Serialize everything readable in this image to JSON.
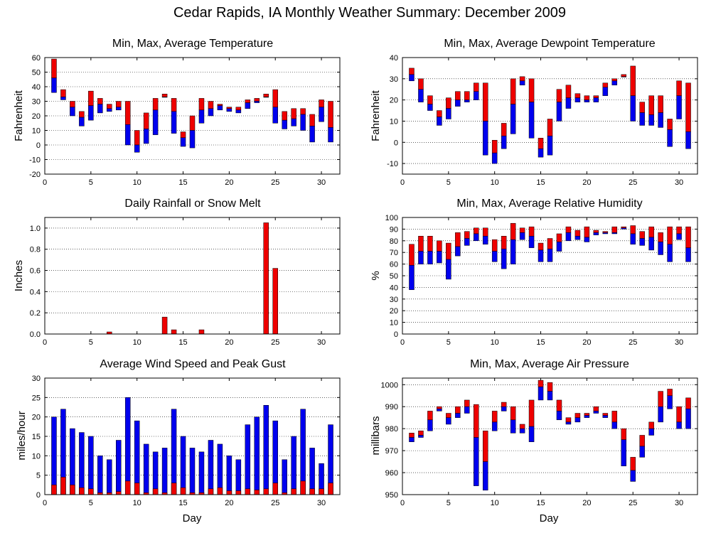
{
  "title": "Cedar Rapids, IA Monthly Weather Summary: December 2009",
  "colors": {
    "upper": "#ee0000",
    "lower": "#0000ee"
  },
  "chart_data": [
    {
      "id": "temp",
      "type": "bar",
      "title": "Min, Max, Average Temperature",
      "ylabel": "Fahrenheit",
      "xlabel": "",
      "xlim": [
        0,
        32
      ],
      "ylim": [
        -20,
        60
      ],
      "yticks": [
        -20,
        -10,
        0,
        10,
        20,
        30,
        40,
        50,
        60
      ],
      "xticks": [
        0,
        5,
        10,
        15,
        20,
        25,
        30
      ],
      "x": [
        1,
        2,
        3,
        4,
        5,
        6,
        7,
        8,
        9,
        10,
        11,
        12,
        13,
        14,
        15,
        16,
        17,
        18,
        19,
        20,
        21,
        22,
        23,
        24,
        25,
        26,
        27,
        28,
        29,
        30,
        31
      ],
      "series": [
        {
          "name": "Min",
          "values": [
            36,
            31,
            20,
            13,
            17,
            22,
            23,
            24,
            0,
            -5,
            1,
            7,
            33,
            8,
            -1,
            -2,
            15,
            20,
            24,
            23,
            22,
            25,
            29,
            33,
            15,
            11,
            13,
            10,
            2,
            16,
            2
          ]
        },
        {
          "name": "Average",
          "values": [
            46,
            33,
            26,
            19,
            27,
            28,
            25,
            26,
            14,
            0,
            11,
            24,
            33,
            23,
            5,
            10,
            24,
            25,
            27,
            25,
            24,
            29,
            30,
            33,
            26,
            17,
            18,
            21,
            13,
            26,
            12
          ]
        },
        {
          "name": "Max",
          "values": [
            59,
            38,
            30,
            23,
            37,
            32,
            28,
            30,
            30,
            10,
            22,
            32,
            35,
            32,
            9,
            20,
            32,
            30,
            28,
            26,
            26,
            31,
            32,
            35,
            38,
            23,
            25,
            25,
            21,
            31,
            30
          ]
        }
      ]
    },
    {
      "id": "dewpoint",
      "type": "bar",
      "title": "Min, Max, Average Dewpoint Temperature",
      "ylabel": "Fahrenheit",
      "xlabel": "",
      "xlim": [
        0,
        32
      ],
      "ylim": [
        -15,
        40
      ],
      "yticks": [
        -10,
        0,
        10,
        20,
        30,
        40
      ],
      "xticks": [
        0,
        5,
        10,
        15,
        20,
        25,
        30
      ],
      "x": [
        1,
        2,
        3,
        4,
        5,
        6,
        7,
        8,
        9,
        10,
        11,
        12,
        13,
        14,
        15,
        16,
        17,
        18,
        19,
        20,
        21,
        22,
        23,
        24,
        25,
        26,
        27,
        28,
        29,
        30,
        31
      ],
      "series": [
        {
          "name": "Min",
          "values": [
            29,
            19,
            15,
            8,
            11,
            17,
            19,
            20,
            -6,
            -10,
            -3,
            4,
            27,
            2,
            -7,
            -6,
            10,
            16,
            19,
            19,
            19,
            22,
            27,
            31,
            10,
            8,
            8,
            7,
            -2,
            11,
            -3
          ]
        },
        {
          "name": "Average",
          "values": [
            32,
            25,
            18,
            12,
            16,
            20,
            20,
            24,
            10,
            -5,
            3,
            18,
            29,
            19,
            -3,
            3,
            19,
            21,
            21,
            20,
            21,
            26,
            29,
            31,
            22,
            14,
            13,
            14,
            6,
            22,
            5
          ]
        },
        {
          "name": "Max",
          "values": [
            35,
            30,
            22,
            15,
            21,
            24,
            24,
            28,
            28,
            1,
            9,
            30,
            31,
            30,
            2,
            11,
            25,
            27,
            23,
            22,
            22,
            28,
            30,
            32,
            36,
            19,
            22,
            22,
            11,
            29,
            28
          ]
        }
      ]
    },
    {
      "id": "rain",
      "type": "bar",
      "title": "Daily Rainfall or Snow Melt",
      "ylabel": "Inches",
      "xlabel": "",
      "xlim": [
        0,
        32
      ],
      "ylim": [
        0,
        1.1
      ],
      "yticks": [
        0,
        0.2,
        0.4,
        0.6,
        0.8,
        1.0
      ],
      "ytick_labels": [
        "0.0",
        "0.2",
        "0.4",
        "0.6",
        "0.8",
        "1.0"
      ],
      "xticks": [
        0,
        5,
        10,
        15,
        20,
        25,
        30
      ],
      "x": [
        1,
        2,
        3,
        4,
        5,
        6,
        7,
        8,
        9,
        10,
        11,
        12,
        13,
        14,
        15,
        16,
        17,
        18,
        19,
        20,
        21,
        22,
        23,
        24,
        25,
        26,
        27,
        28,
        29,
        30,
        31
      ],
      "values": [
        0,
        0,
        0,
        0,
        0,
        0,
        0.02,
        0,
        0,
        0,
        0,
        0,
        0.16,
        0.04,
        0,
        0,
        0.04,
        0,
        0,
        0,
        0,
        0,
        0,
        1.05,
        0.62,
        0,
        0,
        0,
        0,
        0,
        0
      ]
    },
    {
      "id": "humidity",
      "type": "bar",
      "title": "Min, Max, Average Relative Humidity",
      "ylabel": "%",
      "xlabel": "",
      "xlim": [
        0,
        32
      ],
      "ylim": [
        0,
        100
      ],
      "yticks": [
        0,
        10,
        20,
        30,
        40,
        50,
        60,
        70,
        80,
        90,
        100
      ],
      "xticks": [
        0,
        5,
        10,
        15,
        20,
        25,
        30
      ],
      "x": [
        1,
        2,
        3,
        4,
        5,
        6,
        7,
        8,
        9,
        10,
        11,
        12,
        13,
        14,
        15,
        16,
        17,
        18,
        19,
        20,
        21,
        22,
        23,
        24,
        25,
        26,
        27,
        28,
        29,
        30,
        31
      ],
      "series": [
        {
          "name": "Min",
          "values": [
            38,
            60,
            60,
            61,
            47,
            67,
            76,
            80,
            77,
            62,
            56,
            60,
            81,
            74,
            62,
            62,
            71,
            80,
            81,
            79,
            85,
            86,
            86,
            90,
            77,
            76,
            72,
            68,
            62,
            81,
            62
          ]
        },
        {
          "name": "Average",
          "values": [
            59,
            71,
            71,
            71,
            64,
            75,
            82,
            86,
            84,
            71,
            73,
            81,
            87,
            84,
            72,
            73,
            79,
            87,
            84,
            83,
            87,
            87,
            87,
            91,
            86,
            82,
            83,
            79,
            77,
            86,
            74
          ]
        },
        {
          "name": "Max",
          "values": [
            77,
            84,
            84,
            80,
            78,
            87,
            88,
            91,
            91,
            81,
            84,
            95,
            91,
            92,
            78,
            82,
            86,
            92,
            89,
            92,
            89,
            88,
            92,
            92,
            93,
            88,
            92,
            87,
            92,
            92,
            92
          ]
        }
      ]
    },
    {
      "id": "wind",
      "type": "bar",
      "title": "Average Wind Speed and Peak Gust",
      "ylabel": "miles/hour",
      "xlabel": "Day",
      "xlim": [
        0,
        32
      ],
      "ylim": [
        0,
        30
      ],
      "yticks": [
        0,
        5,
        10,
        15,
        20,
        25,
        30
      ],
      "xticks": [
        0,
        5,
        10,
        15,
        20,
        25,
        30
      ],
      "x": [
        1,
        2,
        3,
        4,
        5,
        6,
        7,
        8,
        9,
        10,
        11,
        12,
        13,
        14,
        15,
        16,
        17,
        18,
        19,
        20,
        21,
        22,
        23,
        24,
        25,
        26,
        27,
        28,
        29,
        30,
        31
      ],
      "series": [
        {
          "name": "Peak Gust",
          "values": [
            20,
            22,
            17,
            16,
            15,
            10,
            9,
            14,
            25,
            19,
            13,
            11,
            12,
            22,
            15,
            12,
            11,
            14,
            13,
            10,
            9,
            18,
            20,
            23,
            19,
            9,
            15,
            22,
            12,
            8,
            18
          ]
        },
        {
          "name": "Average Wind Speed",
          "values": [
            2.5,
            4.5,
            2.5,
            1.8,
            1.5,
            0.5,
            0.5,
            0.8,
            3.5,
            3.0,
            0.5,
            1.5,
            0.5,
            3.0,
            1.8,
            0.5,
            0.5,
            1.5,
            1.8,
            1.0,
            1.0,
            1.5,
            1.2,
            1.5,
            3.0,
            0.5,
            1.5,
            3.5,
            1.5,
            1.5,
            3.0
          ]
        }
      ]
    },
    {
      "id": "pressure",
      "type": "bar",
      "title": "Min, Max, Average Air Pressure",
      "ylabel": "millibars",
      "xlabel": "Day",
      "xlim": [
        0,
        32
      ],
      "ylim": [
        950,
        1003
      ],
      "yticks": [
        950,
        960,
        970,
        980,
        990,
        1000
      ],
      "xticks": [
        0,
        5,
        10,
        15,
        20,
        25,
        30
      ],
      "x": [
        1,
        2,
        3,
        4,
        5,
        6,
        7,
        8,
        9,
        10,
        11,
        12,
        13,
        14,
        15,
        16,
        17,
        18,
        19,
        20,
        21,
        22,
        23,
        24,
        25,
        26,
        27,
        28,
        29,
        30,
        31
      ],
      "series": [
        {
          "name": "Min",
          "values": [
            974,
            976,
            979,
            988,
            982,
            985,
            987,
            954,
            952,
            979,
            988,
            978,
            978,
            974,
            993,
            993,
            984,
            982,
            983,
            985,
            987,
            985,
            980,
            963,
            956,
            967,
            977,
            983,
            989,
            980,
            980
          ]
        },
        {
          "name": "Average",
          "values": [
            976,
            977,
            984,
            989,
            985,
            987,
            990,
            976,
            965,
            983,
            990,
            984,
            980,
            981,
            999,
            997,
            988,
            983,
            985,
            986,
            988,
            986,
            983,
            975,
            961,
            972,
            980,
            990,
            995,
            983,
            989
          ]
        },
        {
          "name": "Max",
          "values": [
            978,
            979,
            988,
            990,
            987,
            990,
            993,
            991,
            979,
            988,
            992,
            990,
            982,
            993,
            1002,
            1001,
            993,
            985,
            987,
            987,
            990,
            987,
            988,
            980,
            967,
            977,
            983,
            997,
            998,
            990,
            994
          ]
        }
      ]
    }
  ]
}
